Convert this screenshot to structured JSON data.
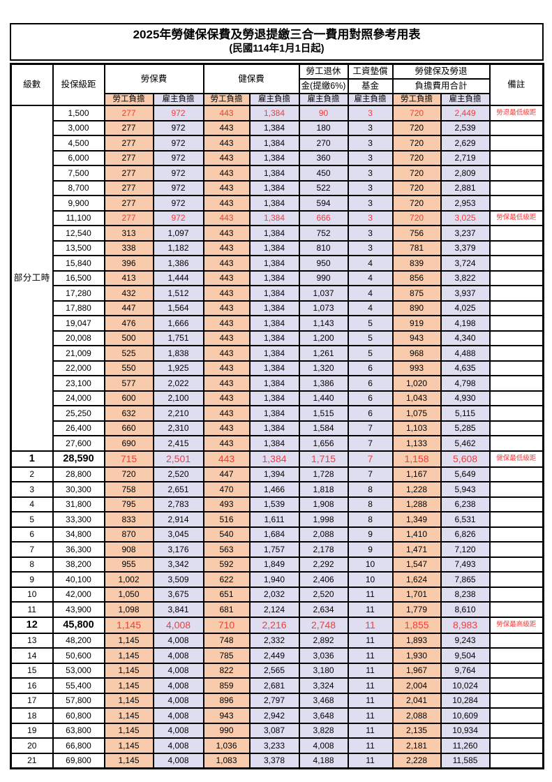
{
  "title": "2025年勞健保保費及勞退提繳三合一費用對照參考用表",
  "subtitle": "(民國114年1月1日起)",
  "colors": {
    "employee_bg": "#F8CBAD",
    "employer_bg": "#DFDDF0",
    "highlight_red": "#f43b3b",
    "border": "#000000"
  },
  "header": {
    "level": "級數",
    "bracket": "投保級距",
    "labor_insurance": "勞保費",
    "health_insurance": "健保費",
    "pension_line1": "勞工退休",
    "pension_line2": "金(提繳6%)",
    "wage_fund_line1": "工資墊償",
    "wage_fund_line2": "基金",
    "total_line1": "勞健保及勞退",
    "total_line2": "負擔費用合計",
    "remark": "備註",
    "employee_burden": "勞工負擔",
    "employer_burden": "雇主負擔"
  },
  "part_time_label": "部分工時",
  "part_time_row_span": 23,
  "chart_data": {
    "type": "table",
    "title": "2025年勞健保保費及勞退提繳三合一費用對照參考用表",
    "columns": [
      "級數",
      "投保級距",
      "勞保費-勞工負擔",
      "勞保費-雇主負擔",
      "健保費-勞工負擔",
      "健保費-雇主負擔",
      "勞工退休金(提繳6%)-雇主負擔",
      "工資墊償基金-雇主負擔",
      "合計-勞工負擔",
      "合計-雇主負擔",
      "備註"
    ]
  },
  "rows": [
    {
      "level": "",
      "bracket": "1,500",
      "vals": [
        "277",
        "972",
        "443",
        "1,384",
        "90",
        "3",
        "720",
        "2,449"
      ],
      "remark": "勞退最低級距",
      "style": "red"
    },
    {
      "level": "",
      "bracket": "3,000",
      "vals": [
        "277",
        "972",
        "443",
        "1,384",
        "180",
        "3",
        "720",
        "2,539"
      ],
      "remark": "",
      "style": ""
    },
    {
      "level": "",
      "bracket": "4,500",
      "vals": [
        "277",
        "972",
        "443",
        "1,384",
        "270",
        "3",
        "720",
        "2,629"
      ],
      "remark": "",
      "style": ""
    },
    {
      "level": "",
      "bracket": "6,000",
      "vals": [
        "277",
        "972",
        "443",
        "1,384",
        "360",
        "3",
        "720",
        "2,719"
      ],
      "remark": "",
      "style": ""
    },
    {
      "level": "",
      "bracket": "7,500",
      "vals": [
        "277",
        "972",
        "443",
        "1,384",
        "450",
        "3",
        "720",
        "2,809"
      ],
      "remark": "",
      "style": ""
    },
    {
      "level": "",
      "bracket": "8,700",
      "vals": [
        "277",
        "972",
        "443",
        "1,384",
        "522",
        "3",
        "720",
        "2,881"
      ],
      "remark": "",
      "style": ""
    },
    {
      "level": "",
      "bracket": "9,900",
      "vals": [
        "277",
        "972",
        "443",
        "1,384",
        "594",
        "3",
        "720",
        "2,953"
      ],
      "remark": "",
      "style": ""
    },
    {
      "level": "",
      "bracket": "11,100",
      "vals": [
        "277",
        "972",
        "443",
        "1,384",
        "666",
        "3",
        "720",
        "3,025"
      ],
      "remark": "勞保最低級距",
      "style": "red"
    },
    {
      "level": "",
      "bracket": "12,540",
      "vals": [
        "313",
        "1,097",
        "443",
        "1,384",
        "752",
        "3",
        "756",
        "3,237"
      ],
      "remark": "",
      "style": ""
    },
    {
      "level": "",
      "bracket": "13,500",
      "vals": [
        "338",
        "1,182",
        "443",
        "1,384",
        "810",
        "3",
        "781",
        "3,379"
      ],
      "remark": "",
      "style": ""
    },
    {
      "level": "",
      "bracket": "15,840",
      "vals": [
        "396",
        "1,386",
        "443",
        "1,384",
        "950",
        "4",
        "839",
        "3,724"
      ],
      "remark": "",
      "style": ""
    },
    {
      "level": "",
      "bracket": "16,500",
      "vals": [
        "413",
        "1,444",
        "443",
        "1,384",
        "990",
        "4",
        "856",
        "3,822"
      ],
      "remark": "",
      "style": ""
    },
    {
      "level": "",
      "bracket": "17,280",
      "vals": [
        "432",
        "1,512",
        "443",
        "1,384",
        "1,037",
        "4",
        "875",
        "3,937"
      ],
      "remark": "",
      "style": ""
    },
    {
      "level": "",
      "bracket": "17,880",
      "vals": [
        "447",
        "1,564",
        "443",
        "1,384",
        "1,073",
        "4",
        "890",
        "4,025"
      ],
      "remark": "",
      "style": ""
    },
    {
      "level": "",
      "bracket": "19,047",
      "vals": [
        "476",
        "1,666",
        "443",
        "1,384",
        "1,143",
        "5",
        "919",
        "4,198"
      ],
      "remark": "",
      "style": ""
    },
    {
      "level": "",
      "bracket": "20,008",
      "vals": [
        "500",
        "1,751",
        "443",
        "1,384",
        "1,200",
        "5",
        "943",
        "4,340"
      ],
      "remark": "",
      "style": ""
    },
    {
      "level": "",
      "bracket": "21,009",
      "vals": [
        "525",
        "1,838",
        "443",
        "1,384",
        "1,261",
        "5",
        "968",
        "4,488"
      ],
      "remark": "",
      "style": ""
    },
    {
      "level": "",
      "bracket": "22,000",
      "vals": [
        "550",
        "1,925",
        "443",
        "1,384",
        "1,320",
        "6",
        "993",
        "4,635"
      ],
      "remark": "",
      "style": ""
    },
    {
      "level": "",
      "bracket": "23,100",
      "vals": [
        "577",
        "2,022",
        "443",
        "1,384",
        "1,386",
        "6",
        "1,020",
        "4,798"
      ],
      "remark": "",
      "style": ""
    },
    {
      "level": "",
      "bracket": "24,000",
      "vals": [
        "600",
        "2,100",
        "443",
        "1,384",
        "1,440",
        "6",
        "1,043",
        "4,930"
      ],
      "remark": "",
      "style": ""
    },
    {
      "level": "",
      "bracket": "25,250",
      "vals": [
        "632",
        "2,210",
        "443",
        "1,384",
        "1,515",
        "6",
        "1,075",
        "5,115"
      ],
      "remark": "",
      "style": ""
    },
    {
      "level": "",
      "bracket": "26,400",
      "vals": [
        "660",
        "2,310",
        "443",
        "1,384",
        "1,584",
        "7",
        "1,103",
        "5,285"
      ],
      "remark": "",
      "style": ""
    },
    {
      "level": "",
      "bracket": "27,600",
      "vals": [
        "690",
        "2,415",
        "443",
        "1,384",
        "1,656",
        "7",
        "1,133",
        "5,462"
      ],
      "remark": "",
      "style": ""
    },
    {
      "level": "1",
      "bracket": "28,590",
      "vals": [
        "715",
        "2,501",
        "443",
        "1,384",
        "1,715",
        "7",
        "1,158",
        "5,608"
      ],
      "remark": "健保最低級距",
      "style": "big-red"
    },
    {
      "level": "2",
      "bracket": "28,800",
      "vals": [
        "720",
        "2,520",
        "447",
        "1,394",
        "1,728",
        "7",
        "1,167",
        "5,649"
      ],
      "remark": "",
      "style": ""
    },
    {
      "level": "3",
      "bracket": "30,300",
      "vals": [
        "758",
        "2,651",
        "470",
        "1,466",
        "1,818",
        "8",
        "1,228",
        "5,943"
      ],
      "remark": "",
      "style": ""
    },
    {
      "level": "4",
      "bracket": "31,800",
      "vals": [
        "795",
        "2,783",
        "493",
        "1,539",
        "1,908",
        "8",
        "1,288",
        "6,238"
      ],
      "remark": "",
      "style": ""
    },
    {
      "level": "5",
      "bracket": "33,300",
      "vals": [
        "833",
        "2,914",
        "516",
        "1,611",
        "1,998",
        "8",
        "1,349",
        "6,531"
      ],
      "remark": "",
      "style": ""
    },
    {
      "level": "6",
      "bracket": "34,800",
      "vals": [
        "870",
        "3,045",
        "540",
        "1,684",
        "2,088",
        "9",
        "1,410",
        "6,826"
      ],
      "remark": "",
      "style": ""
    },
    {
      "level": "7",
      "bracket": "36,300",
      "vals": [
        "908",
        "3,176",
        "563",
        "1,757",
        "2,178",
        "9",
        "1,471",
        "7,120"
      ],
      "remark": "",
      "style": ""
    },
    {
      "level": "8",
      "bracket": "38,200",
      "vals": [
        "955",
        "3,342",
        "592",
        "1,849",
        "2,292",
        "10",
        "1,547",
        "7,493"
      ],
      "remark": "",
      "style": ""
    },
    {
      "level": "9",
      "bracket": "40,100",
      "vals": [
        "1,002",
        "3,509",
        "622",
        "1,940",
        "2,406",
        "10",
        "1,624",
        "7,865"
      ],
      "remark": "",
      "style": ""
    },
    {
      "level": "10",
      "bracket": "42,000",
      "vals": [
        "1,050",
        "3,675",
        "651",
        "2,032",
        "2,520",
        "11",
        "1,701",
        "8,238"
      ],
      "remark": "",
      "style": ""
    },
    {
      "level": "11",
      "bracket": "43,900",
      "vals": [
        "1,098",
        "3,841",
        "681",
        "2,124",
        "2,634",
        "11",
        "1,779",
        "8,610"
      ],
      "remark": "",
      "style": ""
    },
    {
      "level": "12",
      "bracket": "45,800",
      "vals": [
        "1,145",
        "4,008",
        "710",
        "2,216",
        "2,748",
        "11",
        "1,855",
        "8,983"
      ],
      "remark": "勞保最高級距",
      "style": "big-red"
    },
    {
      "level": "13",
      "bracket": "48,200",
      "vals": [
        "1,145",
        "4,008",
        "748",
        "2,332",
        "2,892",
        "11",
        "1,893",
        "9,243"
      ],
      "remark": "",
      "style": ""
    },
    {
      "level": "14",
      "bracket": "50,600",
      "vals": [
        "1,145",
        "4,008",
        "785",
        "2,449",
        "3,036",
        "11",
        "1,930",
        "9,504"
      ],
      "remark": "",
      "style": ""
    },
    {
      "level": "15",
      "bracket": "53,000",
      "vals": [
        "1,145",
        "4,008",
        "822",
        "2,565",
        "3,180",
        "11",
        "1,967",
        "9,764"
      ],
      "remark": "",
      "style": ""
    },
    {
      "level": "16",
      "bracket": "55,400",
      "vals": [
        "1,145",
        "4,008",
        "859",
        "2,681",
        "3,324",
        "11",
        "2,004",
        "10,024"
      ],
      "remark": "",
      "style": ""
    },
    {
      "level": "17",
      "bracket": "57,800",
      "vals": [
        "1,145",
        "4,008",
        "896",
        "2,797",
        "3,468",
        "11",
        "2,041",
        "10,284"
      ],
      "remark": "",
      "style": ""
    },
    {
      "level": "18",
      "bracket": "60,800",
      "vals": [
        "1,145",
        "4,008",
        "943",
        "2,942",
        "3,648",
        "11",
        "2,088",
        "10,609"
      ],
      "remark": "",
      "style": ""
    },
    {
      "level": "19",
      "bracket": "63,800",
      "vals": [
        "1,145",
        "4,008",
        "990",
        "3,087",
        "3,828",
        "11",
        "2,135",
        "10,934"
      ],
      "remark": "",
      "style": ""
    },
    {
      "level": "20",
      "bracket": "66,800",
      "vals": [
        "1,145",
        "4,008",
        "1,036",
        "3,233",
        "4,008",
        "11",
        "2,181",
        "11,260"
      ],
      "remark": "",
      "style": ""
    },
    {
      "level": "21",
      "bracket": "69,800",
      "vals": [
        "1,145",
        "4,008",
        "1,083",
        "3,378",
        "4,188",
        "11",
        "2,228",
        "11,585"
      ],
      "remark": "",
      "style": ""
    }
  ]
}
